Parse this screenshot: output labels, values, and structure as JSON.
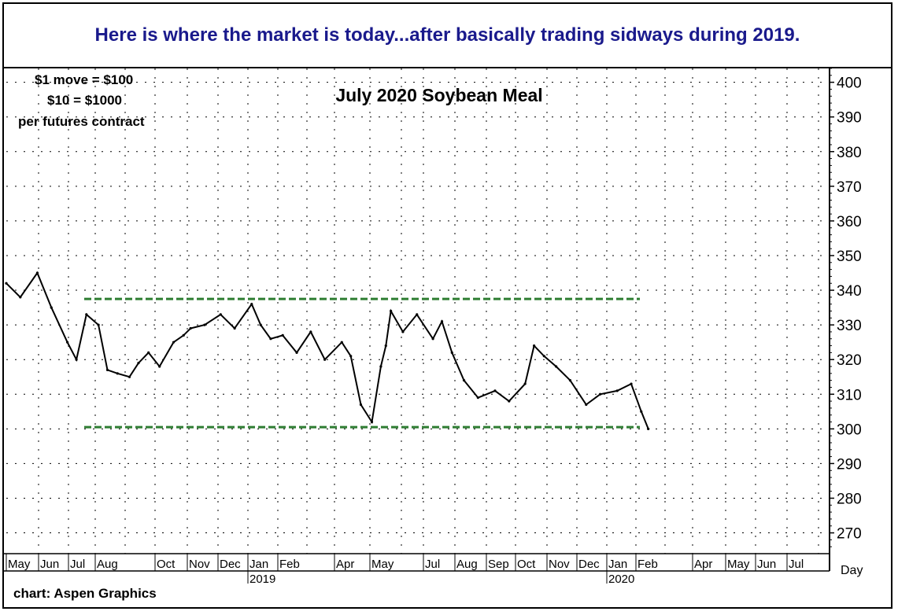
{
  "banner": {
    "text": "Here is where the market is today...after basically trading sidways during 2019."
  },
  "contract_note": {
    "line1": "$1 move = $100",
    "line2": "$10 = $1000",
    "line3": "per futures contract"
  },
  "credit": "chart: Aspen Graphics",
  "colors": {
    "banner_text": "#1a1a8c",
    "price": "#000000",
    "range_lines": "#2e7d32",
    "grid": "#000000"
  },
  "chart_data": {
    "type": "line",
    "title": "July 2020 Soybean Meal",
    "xlabel": "",
    "ylabel": "",
    "period_label": "Day",
    "ylim": [
      264,
      404
    ],
    "yticks": [
      270,
      280,
      290,
      300,
      310,
      320,
      330,
      340,
      350,
      360,
      370,
      380,
      390,
      400
    ],
    "grid": true,
    "month_ticks": [
      "May",
      "Jun",
      "Jul",
      "Aug",
      "Oct",
      "Nov",
      "Dec",
      "Jan",
      "Feb",
      "Apr",
      "May",
      "Jul",
      "Aug",
      "Sep",
      "Oct",
      "Nov",
      "Dec",
      "Jan",
      "Feb",
      "Apr",
      "May",
      "Jun",
      "Jul"
    ],
    "year_labels": [
      "2019",
      "2020"
    ],
    "horizontal_lines": [
      {
        "value": 337.5,
        "style": "dashed"
      },
      {
        "value": 300.5,
        "style": "dashed"
      }
    ],
    "series": [
      {
        "x": [
          "2018-05-01",
          "2018-05-15",
          "2018-06-01",
          "2018-06-15",
          "2018-07-01",
          "2018-07-10",
          "2018-07-20",
          "2018-08-01",
          "2018-08-10",
          "2018-08-20",
          "2018-09-01",
          "2018-09-10",
          "2018-09-20",
          "2018-10-01",
          "2018-10-15",
          "2018-10-25",
          "2018-11-01",
          "2018-11-15",
          "2018-12-01",
          "2018-12-15",
          "2019-01-01",
          "2019-01-10",
          "2019-01-20",
          "2019-02-01",
          "2019-02-15",
          "2019-03-01",
          "2019-03-15",
          "2019-04-01",
          "2019-04-10",
          "2019-04-20",
          "2019-05-01",
          "2019-05-10",
          "2019-05-15",
          "2019-05-20",
          "2019-06-01",
          "2019-06-15",
          "2019-07-01",
          "2019-07-10",
          "2019-07-20",
          "2019-08-01",
          "2019-08-15",
          "2019-09-01",
          "2019-09-15",
          "2019-10-01",
          "2019-10-10",
          "2019-10-20",
          "2019-11-01",
          "2019-11-15",
          "2019-12-01",
          "2019-12-15",
          "2020-01-01",
          "2020-01-15",
          "2020-01-25",
          "2020-02-01"
        ],
        "values": [
          342,
          338,
          345,
          335,
          325,
          320,
          333,
          330,
          317,
          316,
          315,
          319,
          322,
          318,
          325,
          327,
          329,
          330,
          333,
          329,
          336,
          330,
          326,
          327,
          322,
          328,
          320,
          325,
          321,
          307,
          302,
          318,
          324,
          334,
          328,
          333,
          326,
          331,
          322,
          314,
          309,
          311,
          308,
          313,
          324,
          321,
          318,
          314,
          307,
          310,
          311,
          313,
          305,
          300
        ]
      }
    ]
  }
}
